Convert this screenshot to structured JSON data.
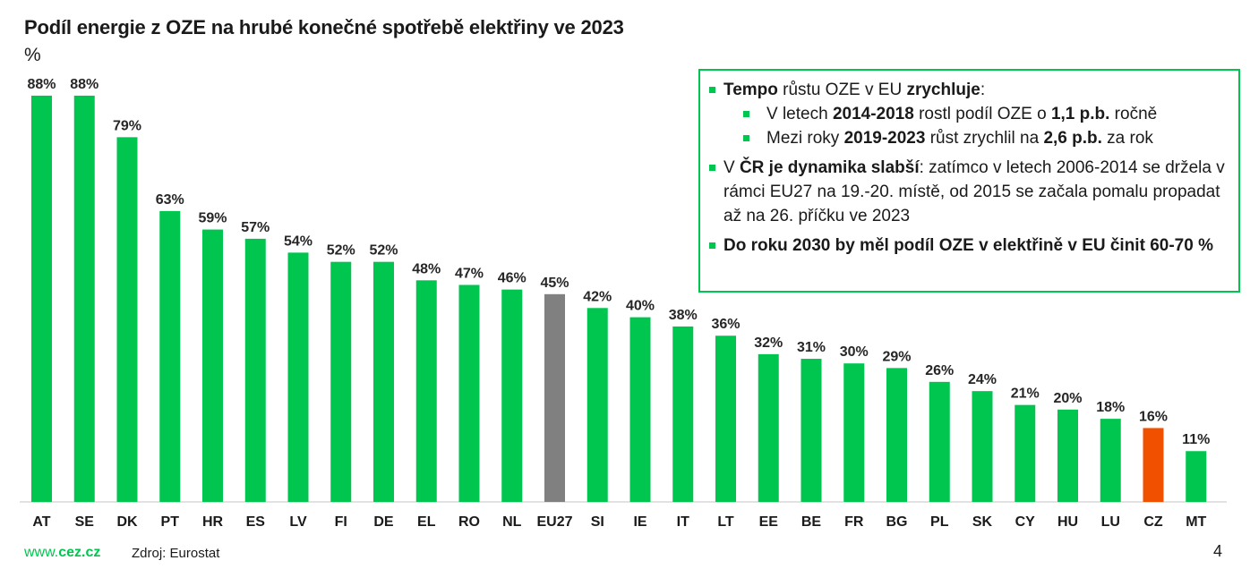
{
  "slide": {
    "title": "Podíl energie z OZE na hrubé konečné spotřebě elektřiny ve 2023",
    "unit": "%",
    "page_number": "4",
    "footer": {
      "url_prefix": "www.",
      "url_brand": "cez.cz",
      "source": "Zdroj: Eurostat"
    }
  },
  "colors": {
    "default_bar": "#00c650",
    "eu_bar": "#808080",
    "cz_bar": "#f05000",
    "accent": "#00c650",
    "axis": "#d9d9d9"
  },
  "callout": {
    "items": [
      {
        "level": 0,
        "parts": [
          {
            "t": "Tempo",
            "b": true
          },
          {
            "t": " růstu OZE v EU ",
            "b": false
          },
          {
            "t": "zrychluje",
            "b": true
          },
          {
            "t": ":",
            "b": false
          }
        ]
      },
      {
        "level": 1,
        "parts": [
          {
            "t": "V letech ",
            "b": false
          },
          {
            "t": "2014-2018",
            "b": true
          },
          {
            "t": " rostl podíl OZE o ",
            "b": false
          },
          {
            "t": "1,1 p.b.",
            "b": true
          },
          {
            "t": " ročně",
            "b": false
          }
        ]
      },
      {
        "level": 1,
        "parts": [
          {
            "t": "Mezi roky ",
            "b": false
          },
          {
            "t": "2019-2023",
            "b": true
          },
          {
            "t": " růst zrychlil na ",
            "b": false
          },
          {
            "t": "2,6 p.b.",
            "b": true
          },
          {
            "t": " za rok",
            "b": false
          }
        ]
      },
      {
        "level": 0,
        "parts": [
          {
            "t": "V ",
            "b": false
          },
          {
            "t": "ČR je dynamika slabší",
            "b": true
          },
          {
            "t": ": zatímco v letech 2006-2014 se držela v rámci EU27 na 19.-20. místě, od 2015 se začala pomalu propadat až na 26. příčku ve 2023",
            "b": false
          }
        ]
      },
      {
        "level": 0,
        "parts": [
          {
            "t": "Do roku 2030 by měl podíl OZE v elektřině v EU činit 60-70 %",
            "b": true
          }
        ]
      }
    ]
  },
  "chart_data": {
    "type": "bar",
    "title": "Podíl energie z OZE na hrubé konečné spotřebě elektřiny ve 2023",
    "xlabel": "",
    "ylabel": "%",
    "ylim": [
      0,
      90
    ],
    "grid": false,
    "legend": "none",
    "categories": [
      "AT",
      "SE",
      "DK",
      "PT",
      "HR",
      "ES",
      "LV",
      "FI",
      "DE",
      "EL",
      "RO",
      "NL",
      "EU27",
      "SI",
      "IE",
      "IT",
      "LT",
      "EE",
      "BE",
      "FR",
      "BG",
      "PL",
      "SK",
      "CY",
      "HU",
      "LU",
      "CZ",
      "MT"
    ],
    "values": [
      88,
      88,
      79,
      63,
      59,
      57,
      54,
      52,
      52,
      48,
      47,
      46,
      45,
      42,
      40,
      38,
      36,
      32,
      31,
      30,
      29,
      26,
      24,
      21,
      20,
      18,
      16,
      11
    ],
    "labels": [
      "88%",
      "88%",
      "79%",
      "63%",
      "59%",
      "57%",
      "54%",
      "52%",
      "52%",
      "48%",
      "47%",
      "46%",
      "45%",
      "42%",
      "40%",
      "38%",
      "36%",
      "32%",
      "31%",
      "30%",
      "29%",
      "26%",
      "24%",
      "21%",
      "20%",
      "18%",
      "16%",
      "11%"
    ],
    "highlight": {
      "EU27": "eu_bar",
      "CZ": "cz_bar"
    }
  }
}
